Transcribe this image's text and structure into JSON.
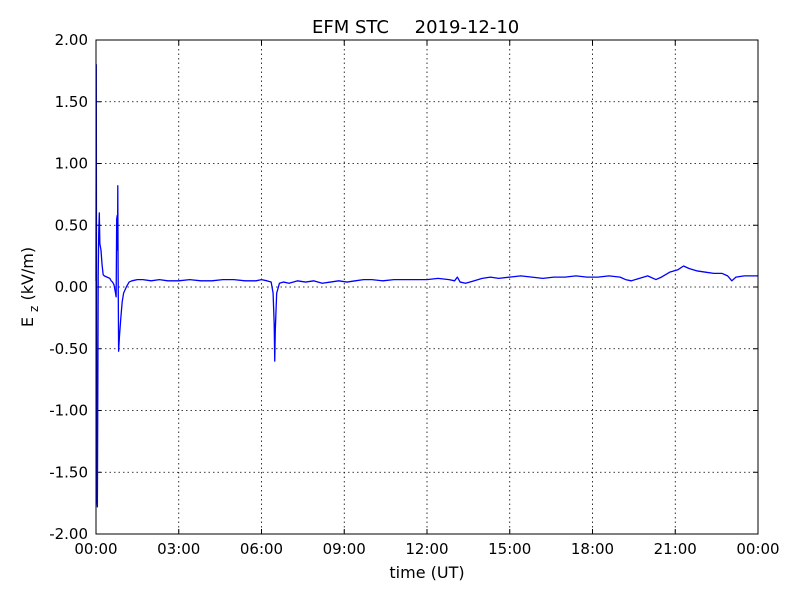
{
  "chart_data": {
    "type": "line",
    "title": "EFM STC",
    "date": "2019-12-10",
    "xlabel": "time (UT)",
    "ylabel_main": "E",
    "ylabel_sub": "z",
    "ylabel_unit": " (kV/m)",
    "x_unit": "hours UT",
    "xlim": [
      0,
      24
    ],
    "ylim": [
      -2.0,
      2.0
    ],
    "grid": true,
    "line_color": "#0000ff",
    "xticks": [
      {
        "value": 0,
        "label": "00:00"
      },
      {
        "value": 3,
        "label": "03:00"
      },
      {
        "value": 6,
        "label": "06:00"
      },
      {
        "value": 9,
        "label": "09:00"
      },
      {
        "value": 12,
        "label": "12:00"
      },
      {
        "value": 15,
        "label": "15:00"
      },
      {
        "value": 18,
        "label": "18:00"
      },
      {
        "value": 21,
        "label": "21:00"
      },
      {
        "value": 24,
        "label": "00:00"
      }
    ],
    "yticks": [
      {
        "value": 2.0,
        "label": "2.00"
      },
      {
        "value": 1.5,
        "label": "1.50"
      },
      {
        "value": 1.0,
        "label": "1.00"
      },
      {
        "value": 0.5,
        "label": "0.50"
      },
      {
        "value": 0.0,
        "label": "0.00"
      },
      {
        "value": -0.5,
        "label": "-0.50"
      },
      {
        "value": -1.0,
        "label": "-1.00"
      },
      {
        "value": -1.5,
        "label": "-1.50"
      },
      {
        "value": -2.0,
        "label": "-2.00"
      }
    ],
    "series": [
      {
        "points": [
          [
            0.0,
            0.05
          ],
          [
            0.01,
            1.8
          ],
          [
            0.02,
            -0.3
          ],
          [
            0.03,
            -1.7
          ],
          [
            0.05,
            -1.78
          ],
          [
            0.07,
            -0.6
          ],
          [
            0.08,
            0.1
          ],
          [
            0.1,
            0.45
          ],
          [
            0.12,
            0.6
          ],
          [
            0.14,
            0.35
          ],
          [
            0.18,
            0.3
          ],
          [
            0.22,
            0.18
          ],
          [
            0.26,
            0.1
          ],
          [
            0.3,
            0.09
          ],
          [
            0.4,
            0.08
          ],
          [
            0.5,
            0.07
          ],
          [
            0.55,
            0.05
          ],
          [
            0.6,
            0.04
          ],
          [
            0.65,
            0.02
          ],
          [
            0.7,
            -0.04
          ],
          [
            0.73,
            -0.08
          ],
          [
            0.75,
            0.55
          ],
          [
            0.77,
            0.58
          ],
          [
            0.78,
            0.3
          ],
          [
            0.79,
            0.82
          ],
          [
            0.8,
            0.2
          ],
          [
            0.82,
            -0.52
          ],
          [
            0.85,
            -0.4
          ],
          [
            0.9,
            -0.25
          ],
          [
            0.95,
            -0.12
          ],
          [
            1.0,
            -0.05
          ],
          [
            1.1,
            0.0
          ],
          [
            1.2,
            0.04
          ],
          [
            1.3,
            0.05
          ],
          [
            1.5,
            0.06
          ],
          [
            1.7,
            0.06
          ],
          [
            2.0,
            0.05
          ],
          [
            2.3,
            0.06
          ],
          [
            2.6,
            0.05
          ],
          [
            3.0,
            0.05
          ],
          [
            3.4,
            0.06
          ],
          [
            3.8,
            0.05
          ],
          [
            4.2,
            0.05
          ],
          [
            4.6,
            0.06
          ],
          [
            5.0,
            0.06
          ],
          [
            5.4,
            0.05
          ],
          [
            5.8,
            0.05
          ],
          [
            6.0,
            0.06
          ],
          [
            6.2,
            0.05
          ],
          [
            6.35,
            0.04
          ],
          [
            6.42,
            -0.05
          ],
          [
            6.46,
            -0.3
          ],
          [
            6.48,
            -0.6
          ],
          [
            6.5,
            -0.35
          ],
          [
            6.55,
            -0.05
          ],
          [
            6.65,
            0.03
          ],
          [
            6.8,
            0.04
          ],
          [
            7.0,
            0.03
          ],
          [
            7.3,
            0.05
          ],
          [
            7.6,
            0.04
          ],
          [
            7.9,
            0.05
          ],
          [
            8.2,
            0.03
          ],
          [
            8.5,
            0.04
          ],
          [
            8.8,
            0.05
          ],
          [
            9.1,
            0.04
          ],
          [
            9.4,
            0.05
          ],
          [
            9.7,
            0.06
          ],
          [
            10.0,
            0.06
          ],
          [
            10.4,
            0.05
          ],
          [
            10.8,
            0.06
          ],
          [
            11.2,
            0.06
          ],
          [
            11.6,
            0.06
          ],
          [
            12.0,
            0.06
          ],
          [
            12.4,
            0.07
          ],
          [
            12.8,
            0.06
          ],
          [
            13.0,
            0.05
          ],
          [
            13.1,
            0.08
          ],
          [
            13.2,
            0.04
          ],
          [
            13.4,
            0.03
          ],
          [
            13.7,
            0.05
          ],
          [
            14.0,
            0.07
          ],
          [
            14.3,
            0.08
          ],
          [
            14.6,
            0.07
          ],
          [
            15.0,
            0.08
          ],
          [
            15.4,
            0.09
          ],
          [
            15.8,
            0.08
          ],
          [
            16.2,
            0.07
          ],
          [
            16.6,
            0.08
          ],
          [
            17.0,
            0.08
          ],
          [
            17.4,
            0.09
          ],
          [
            17.8,
            0.08
          ],
          [
            18.2,
            0.08
          ],
          [
            18.6,
            0.09
          ],
          [
            19.0,
            0.08
          ],
          [
            19.2,
            0.06
          ],
          [
            19.4,
            0.05
          ],
          [
            19.7,
            0.07
          ],
          [
            20.0,
            0.09
          ],
          [
            20.3,
            0.06
          ],
          [
            20.5,
            0.08
          ],
          [
            20.8,
            0.12
          ],
          [
            21.1,
            0.14
          ],
          [
            21.3,
            0.17
          ],
          [
            21.5,
            0.15
          ],
          [
            21.8,
            0.13
          ],
          [
            22.1,
            0.12
          ],
          [
            22.4,
            0.11
          ],
          [
            22.7,
            0.11
          ],
          [
            22.9,
            0.09
          ],
          [
            23.05,
            0.05
          ],
          [
            23.2,
            0.08
          ],
          [
            23.5,
            0.09
          ],
          [
            23.8,
            0.09
          ],
          [
            24.0,
            0.09
          ]
        ]
      }
    ]
  }
}
